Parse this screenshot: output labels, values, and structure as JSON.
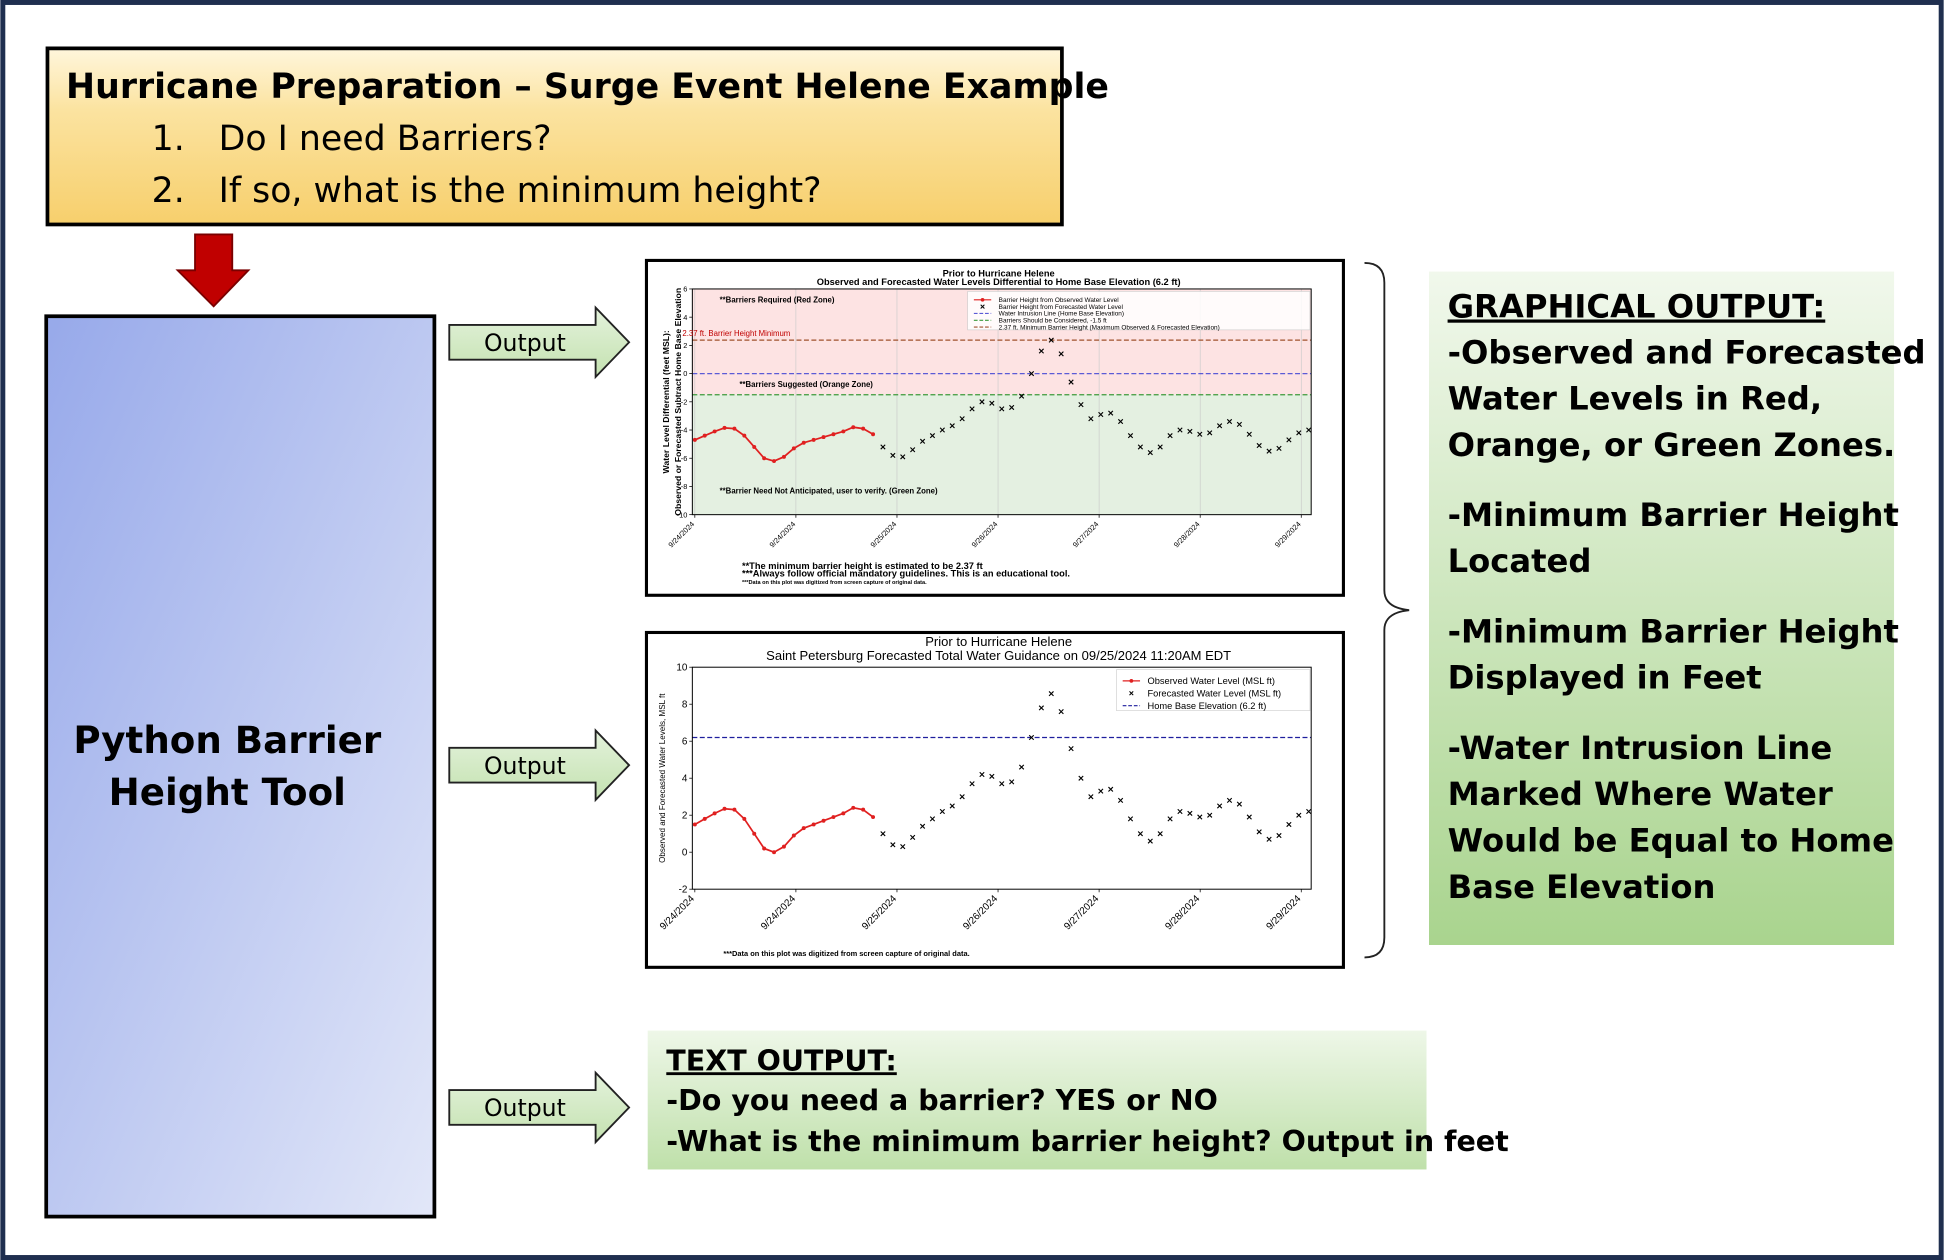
{
  "header": {
    "title": "Hurricane Preparation – Surge Event Helene Example",
    "items": [
      {
        "number": "1.",
        "text": "Do I need Barriers?"
      },
      {
        "number": "2.",
        "text": "If so, what is the minimum height?"
      }
    ]
  },
  "tool": {
    "lines": [
      "Python Barrier",
      "Height Tool"
    ]
  },
  "outputs": [
    "Output",
    "Output",
    "Output"
  ],
  "graphical_output": {
    "title": "GRAPHICAL OUTPUT:",
    "items": [
      [
        "-Observed and Forecasted",
        "Water Levels in Red,",
        "Orange, or Green Zones."
      ],
      [
        "-Minimum Barrier Height",
        "Located"
      ],
      [
        "-Minimum Barrier Height",
        "Displayed in Feet"
      ],
      [
        "-Water Intrusion Line",
        "Marked Where Water",
        "Would be Equal to Home",
        "Base Elevation"
      ]
    ]
  },
  "text_output": {
    "title": "TEXT OUTPUT:",
    "lines": [
      "-Do you need a barrier? YES or NO",
      "-What is the minimum barrier height? Output in feet"
    ]
  },
  "chart_data": [
    {
      "type": "line",
      "title": "Prior to Hurricane Helene",
      "subtitle": "Observed and Forecasted Water Levels Differential to Home Base Elevation (6.2 ft)",
      "ylabel": [
        "Water Level Differential (feet MSL):",
        "Observed or Forecasted Subtract Home Base Elevation"
      ],
      "ylim": [
        -10,
        6
      ],
      "yticks": [
        -10,
        -8,
        -6,
        -4,
        -2,
        0,
        2,
        4,
        6
      ],
      "grid": true,
      "xticks": [
        "9/24/2024",
        "9/24/2024",
        "9/25/2024",
        "9/26/2024",
        "9/27/2024",
        "9/28/2024",
        "9/29/2024"
      ],
      "zones": [
        {
          "from": -1.5,
          "to": 6,
          "color": "#fde3e3"
        },
        {
          "from": -10,
          "to": -1.5,
          "color": "#e4f0e1"
        }
      ],
      "reference_lines": [
        {
          "name": "Water Intrusion Line (Home Base Elevation)",
          "value": 0,
          "color": "#5b5bd6"
        },
        {
          "name": "Barriers Should be Considered, -1.5 ft",
          "value": -1.5,
          "color": "#3c9a3c"
        },
        {
          "name": "2.37 ft. Minimum Barrier Height (Maximum Observed & Forecasted Elevation)",
          "value": 2.37,
          "color": "#a0522d"
        }
      ],
      "series": [
        {
          "name": "Barrier Height from Observed Water Level",
          "color": "#e02020",
          "marker": "o",
          "values": [
            -4.7,
            -4.4,
            -4.1,
            -3.85,
            -3.9,
            -4.4,
            -5.2,
            -6.0,
            -6.2,
            -5.9,
            -5.3,
            -4.9,
            -4.7,
            -4.5,
            -4.3,
            -4.1,
            -3.8,
            -3.9,
            -4.3,
            null,
            null,
            null,
            null,
            null,
            null,
            null,
            null,
            null,
            null,
            null,
            null,
            null,
            null,
            null,
            null,
            null,
            null,
            null,
            null,
            null,
            null,
            null,
            null,
            null,
            null,
            null,
            null,
            null,
            null,
            null,
            null,
            null,
            null,
            null,
            null,
            null,
            null,
            null,
            null,
            null,
            null,
            null,
            null
          ]
        },
        {
          "name": "Barrier Height from Forecasted Water Level",
          "color": "#000000",
          "marker": "x",
          "values": [
            null,
            null,
            null,
            null,
            null,
            null,
            null,
            null,
            null,
            null,
            null,
            null,
            null,
            null,
            null,
            null,
            null,
            null,
            null,
            -5.2,
            -5.8,
            -5.9,
            -5.4,
            -4.8,
            -4.4,
            -4.0,
            -3.7,
            -3.2,
            -2.5,
            -2.0,
            -2.1,
            -2.5,
            -2.4,
            -1.6,
            0.0,
            1.6,
            2.37,
            1.4,
            -0.6,
            -2.2,
            -3.2,
            -2.9,
            -2.8,
            -3.4,
            -4.4,
            -5.2,
            -5.6,
            -5.2,
            -4.4,
            -4.0,
            -4.1,
            -4.3,
            -4.2,
            -3.7,
            -3.4,
            -3.6,
            -4.3,
            -5.1,
            -5.5,
            -5.3,
            -4.7,
            -4.2,
            -4.0
          ]
        }
      ],
      "annotations": [
        "**Barriers Required (Red Zone)",
        "2.37 ft. Barrier Height Minimum",
        "**Barriers Suggested (Orange Zone)",
        "**Barrier Need Not Anticipated, user to verify. (Green Zone)"
      ],
      "notes": [
        "**The minimum barrier height is estimated to be 2.37 ft",
        "***Always follow official mandatory guidelines. This is an educational tool.",
        "***Data on this plot was digitized from screen capture of original data."
      ]
    },
    {
      "type": "line",
      "title": "Prior to Hurricane Helene",
      "subtitle": "Saint Petersburg Forecasted Total Water Guidance on 09/25/2024 11:20AM EDT",
      "ylabel": [
        "Observed and Forecasted Water Levels, MSL ft"
      ],
      "ylim": [
        -2,
        10
      ],
      "yticks": [
        -2,
        0,
        2,
        4,
        6,
        8,
        10
      ],
      "grid": false,
      "xticks": [
        "9/24/2024",
        "9/24/2024",
        "9/25/2024",
        "9/26/2024",
        "9/27/2024",
        "9/28/2024",
        "9/29/2024"
      ],
      "reference_lines": [
        {
          "name": "Home Base Elevation (6.2 ft)",
          "value": 6.2,
          "color": "#1f1f9e"
        }
      ],
      "series": [
        {
          "name": "Observed Water Level (MSL ft)",
          "color": "#e02020",
          "marker": "o",
          "values": [
            1.5,
            1.8,
            2.1,
            2.35,
            2.3,
            1.8,
            1.0,
            0.2,
            0.0,
            0.3,
            0.9,
            1.3,
            1.5,
            1.7,
            1.9,
            2.1,
            2.4,
            2.3,
            1.9,
            null,
            null,
            null,
            null,
            null,
            null,
            null,
            null,
            null,
            null,
            null,
            null,
            null,
            null,
            null,
            null,
            null,
            null,
            null,
            null,
            null,
            null,
            null,
            null,
            null,
            null,
            null,
            null,
            null,
            null,
            null,
            null,
            null,
            null,
            null,
            null,
            null,
            null,
            null,
            null,
            null,
            null,
            null,
            null
          ]
        },
        {
          "name": "Forecasted Water Level (MSL ft)",
          "color": "#000000",
          "marker": "x",
          "values": [
            null,
            null,
            null,
            null,
            null,
            null,
            null,
            null,
            null,
            null,
            null,
            null,
            null,
            null,
            null,
            null,
            null,
            null,
            null,
            1.0,
            0.4,
            0.3,
            0.8,
            1.4,
            1.8,
            2.2,
            2.5,
            3.0,
            3.7,
            4.2,
            4.1,
            3.7,
            3.8,
            4.6,
            6.2,
            7.8,
            8.57,
            7.6,
            5.6,
            4.0,
            3.0,
            3.3,
            3.4,
            2.8,
            1.8,
            1.0,
            0.6,
            1.0,
            1.8,
            2.2,
            2.1,
            1.9,
            2.0,
            2.5,
            2.8,
            2.6,
            1.9,
            1.1,
            0.7,
            0.9,
            1.5,
            2.0,
            2.2
          ]
        }
      ],
      "notes": [
        "***Data on this plot was digitized from screen capture of original data."
      ]
    }
  ]
}
